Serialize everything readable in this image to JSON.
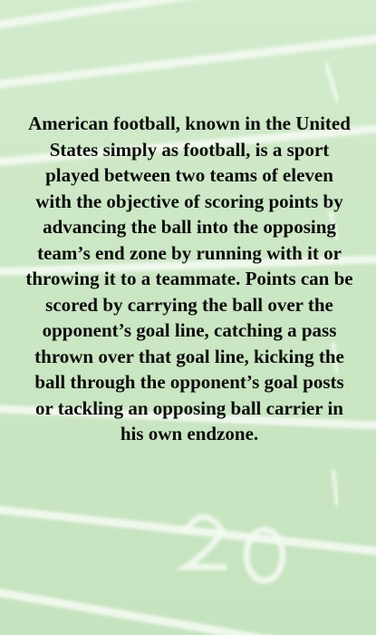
{
  "background": {
    "description": "blurred football field",
    "base_color": "#cfe9c9",
    "line_color": "#ffffff"
  },
  "article": {
    "body": "American football, known in the United States simply as football, is a sport played between two teams of eleven with the objective of scoring points by advancing the ball into the opposing team’s end zone by running with it or throwing it to a teammate. Points can be scored by carrying the ball over the opponent’s goal line, catching a pass thrown over that goal line, kicking the ball through the opponent’s goal posts or tackling an opposing ball carrier in his own endzone."
  }
}
